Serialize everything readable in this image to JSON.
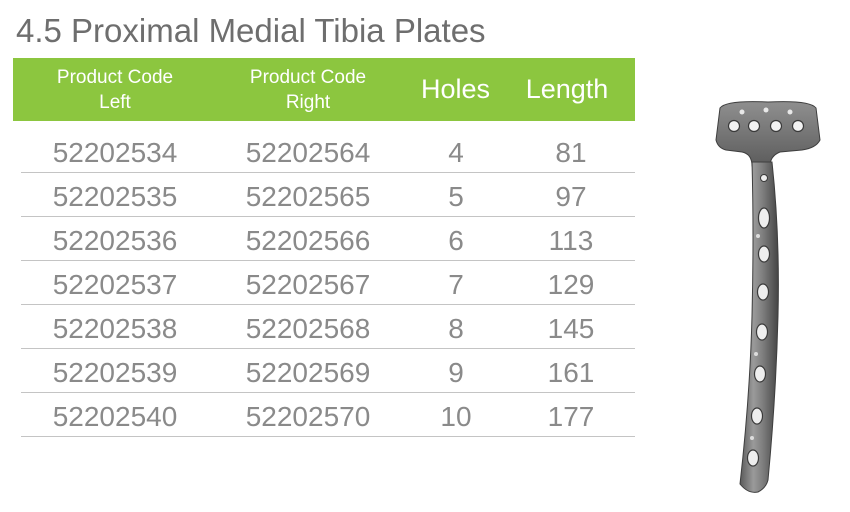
{
  "title": "4.5 Proximal Medial Tibia Plates",
  "table": {
    "headers": {
      "left_line1": "Product Code",
      "left_line2": "Left",
      "right_line1": "Product Code",
      "right_line2": "Right",
      "holes": "Holes",
      "length": "Length"
    },
    "rows": [
      {
        "left": "52202534",
        "right": "52202564",
        "holes": "4",
        "length": "81"
      },
      {
        "left": "52202535",
        "right": "52202565",
        "holes": "5",
        "length": "97"
      },
      {
        "left": "52202536",
        "right": "52202566",
        "holes": "6",
        "length": "113"
      },
      {
        "left": "52202537",
        "right": "52202567",
        "holes": "7",
        "length": "129"
      },
      {
        "left": "52202538",
        "right": "52202568",
        "holes": "8",
        "length": "145"
      },
      {
        "left": "52202539",
        "right": "52202569",
        "holes": "9",
        "length": "161"
      },
      {
        "left": "52202540",
        "right": "52202570",
        "holes": "10",
        "length": "177"
      }
    ]
  },
  "colors": {
    "header_bg": "#8cc63f",
    "header_text": "#ffffff",
    "body_text": "#8a8a8a",
    "title_text": "#6e6e6e"
  },
  "image": {
    "icon": "tibia-plate-illustration"
  }
}
